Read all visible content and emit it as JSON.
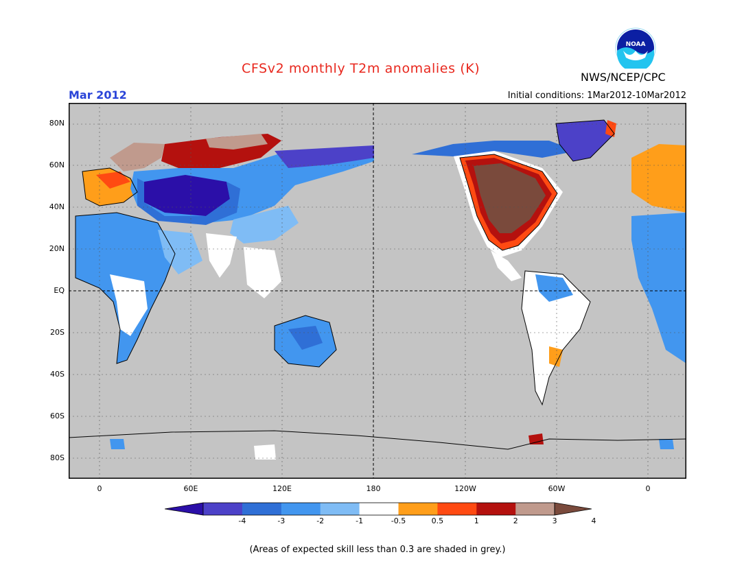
{
  "header": {
    "title": "CFSv2 monthly T2m anomalies (K)",
    "agency": "NWS/NCEP/CPC",
    "month": "Mar 2012",
    "initial_conditions": "Initial conditions: 1Mar2012-10Mar2012",
    "logo_text": "NOAA"
  },
  "axes": {
    "y_ticks": [
      "80N",
      "60N",
      "40N",
      "20N",
      "EQ",
      "20S",
      "40S",
      "60S",
      "80S"
    ],
    "x_ticks": [
      "0",
      "60E",
      "120E",
      "180",
      "120W",
      "60W",
      "0"
    ]
  },
  "colorbar": {
    "labels": [
      "-4",
      "-3",
      "-2",
      "-1",
      "-0.5",
      "0.5",
      "1",
      "2",
      "3",
      "4"
    ],
    "colors": [
      "#2b0fa8",
      "#4c41c8",
      "#2f6fd6",
      "#4296ef",
      "#7fbcf5",
      "#ffffff",
      "#ff9e1a",
      "#ff4a12",
      "#b4110e",
      "#c09a8d",
      "#7a4a3c"
    ]
  },
  "note": "(Areas of expected skill less than 0.3 are shaded in grey.)",
  "colors": {
    "ocean_grey": "#c4c4c4",
    "title_red": "#e8271d",
    "month_blue": "#2a44d8"
  }
}
